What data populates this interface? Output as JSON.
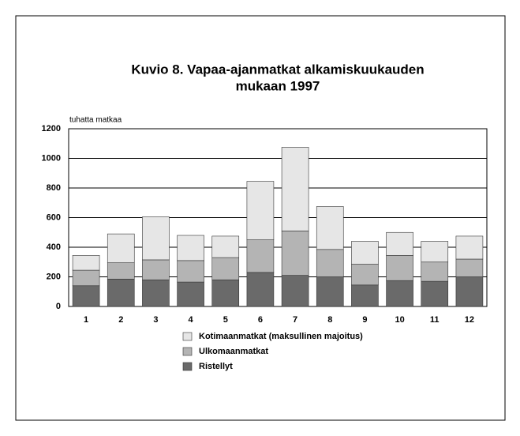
{
  "chart_data": {
    "type": "stacked_bar",
    "title": [
      "Kuvio 8.  Vapaa-ajanmatkat alkamiskuukauden",
      "mukaan 1997"
    ],
    "y_label": "tuhatta matkaa",
    "categories": [
      "1",
      "2",
      "3",
      "4",
      "5",
      "6",
      "7",
      "8",
      "9",
      "10",
      "11",
      "12"
    ],
    "series": [
      {
        "name": "Kotimaanmatkat (maksullinen majoitus)",
        "color": "#e6e6e6",
        "values": [
          100,
          195,
          290,
          170,
          145,
          395,
          565,
          290,
          155,
          155,
          140,
          155
        ]
      },
      {
        "name": "Ulkomaanmatkat",
        "color": "#b4b4b4",
        "values": [
          105,
          110,
          135,
          145,
          150,
          220,
          300,
          185,
          140,
          170,
          130,
          120
        ]
      },
      {
        "name": "Ristellyt",
        "color": "#6a6a6a",
        "values": [
          140,
          185,
          180,
          165,
          180,
          230,
          210,
          200,
          145,
          175,
          170,
          200
        ]
      }
    ],
    "ylim": [
      0,
      1200
    ],
    "yticks": [
      0,
      200,
      400,
      600,
      800,
      1000,
      1200
    ],
    "grid": true
  }
}
